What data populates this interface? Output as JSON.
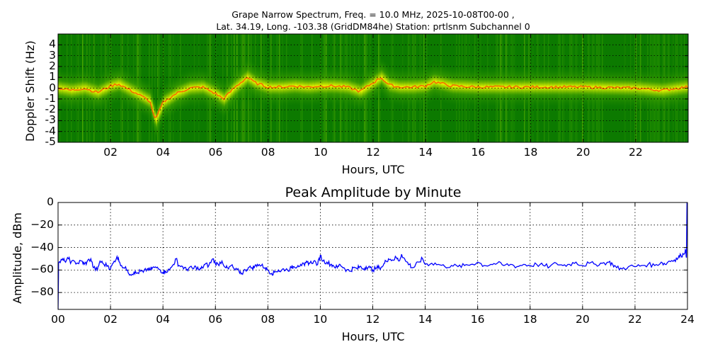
{
  "chart_data": [
    {
      "type": "heatmap",
      "title": "Grape Narrow Spectrum, Freq. = 10.0 MHz, 2025-10-08T00-00 ,\nLat.  34.19, Long. -103.38 (GridDM84he) Station: prtlsnm Subchannel 0",
      "title_line1": "Grape Narrow Spectrum, Freq. = 10.0 MHz, 2025-10-08T00-00 ,",
      "title_line2": "Lat.  34.19, Long. -103.38 (GridDM84he) Station: prtlsnm Subchannel 0",
      "xlabel": "Hours, UTC",
      "ylabel": "Doppler Shift (Hz)",
      "xlim": [
        0,
        24
      ],
      "ylim": [
        -5,
        5
      ],
      "xticks": [
        "02",
        "04",
        "06",
        "08",
        "10",
        "12",
        "14",
        "16",
        "18",
        "20",
        "22"
      ],
      "xtick_values": [
        2,
        4,
        6,
        8,
        10,
        12,
        14,
        16,
        18,
        20,
        22
      ],
      "yticks": [
        "4",
        "3",
        "2",
        "1",
        "0",
        "-1",
        "-2",
        "-3",
        "-4",
        "-5"
      ],
      "ytick_values": [
        4,
        3,
        2,
        1,
        0,
        -1,
        -2,
        -3,
        -4,
        -5
      ],
      "grid": true,
      "colormap": [
        "#006400",
        "#1e8c00",
        "#8cc800",
        "#e6f000",
        "#ffd200",
        "#ff3c00"
      ],
      "doppler_trace_hz": {
        "x": [
          0,
          0.5,
          1,
          1.5,
          2,
          2.3,
          2.6,
          3,
          3.5,
          3.7,
          4,
          4.5,
          5,
          5.5,
          6,
          6.3,
          6.7,
          7.2,
          7.5,
          8,
          8.5,
          9,
          9.5,
          10,
          10.5,
          11,
          11.5,
          12,
          12.3,
          12.6,
          13,
          13.5,
          14,
          14.3,
          15,
          16,
          17,
          18,
          19,
          20,
          21,
          22,
          23,
          23.9
        ],
        "y": [
          0,
          -0.2,
          0,
          -0.4,
          0.2,
          0.4,
          0,
          -0.5,
          -1.2,
          -3,
          -1.3,
          -0.5,
          0,
          0.1,
          -0.5,
          -1,
          0,
          1,
          0.5,
          0.1,
          0.1,
          0.2,
          0.1,
          0.2,
          0.2,
          0.1,
          -0.3,
          0.5,
          1,
          0.3,
          0.1,
          0.1,
          0.2,
          0.6,
          0.2,
          0.1,
          0.1,
          0.1,
          0.1,
          0.1,
          0.05,
          0,
          -0.2,
          0.1
        ]
      }
    },
    {
      "type": "line",
      "title": "Peak Amplitude by Minute",
      "xlabel": "Hours, UTC",
      "ylabel": "Amplitude, dBm",
      "xlim": [
        0,
        24
      ],
      "ylim": [
        -95,
        0
      ],
      "xticks": [
        "00",
        "02",
        "04",
        "06",
        "08",
        "10",
        "12",
        "14",
        "16",
        "18",
        "20",
        "22",
        "24"
      ],
      "xtick_values": [
        0,
        2,
        4,
        6,
        8,
        10,
        12,
        14,
        16,
        18,
        20,
        22,
        24
      ],
      "yticks": [
        "0",
        "−20",
        "−40",
        "−60",
        "−80"
      ],
      "ytick_values": [
        0,
        -20,
        -40,
        -60,
        -80
      ],
      "grid": true,
      "line_color": "#0000ff",
      "series": [
        {
          "name": "Peak Amplitude",
          "x": [
            0,
            0.02,
            0.15,
            0.25,
            0.4,
            0.5,
            0.65,
            0.75,
            0.9,
            1.0,
            1.1,
            1.25,
            1.35,
            1.5,
            1.6,
            1.75,
            1.9,
            2.0,
            2.1,
            2.25,
            2.35,
            2.5,
            2.65,
            2.75,
            2.9,
            3.0,
            3.15,
            3.25,
            3.4,
            3.5,
            3.6,
            3.75,
            3.9,
            4.0,
            4.1,
            4.25,
            4.4,
            4.5,
            4.6,
            4.75,
            4.9,
            5.0,
            5.15,
            5.25,
            5.4,
            5.5,
            5.6,
            5.75,
            5.9,
            6.0,
            6.1,
            6.25,
            6.4,
            6.5,
            6.6,
            6.75,
            6.9,
            7.0,
            7.15,
            7.25,
            7.4,
            7.5,
            7.6,
            7.75,
            7.9,
            8.0,
            8.15,
            8.25,
            8.4,
            8.5,
            8.6,
            8.75,
            8.9,
            9.0,
            9.15,
            9.25,
            9.4,
            9.5,
            9.6,
            9.75,
            9.9,
            10.0,
            10.1,
            10.25,
            10.4,
            10.5,
            10.65,
            10.75,
            10.9,
            11.0,
            11.15,
            11.25,
            11.4,
            11.5,
            11.65,
            11.75,
            11.9,
            12.0,
            12.15,
            12.25,
            12.4,
            12.5,
            12.6,
            12.75,
            12.9,
            13.0,
            13.1,
            13.25,
            13.4,
            13.5,
            13.6,
            13.75,
            13.9,
            14.0,
            14.25,
            14.5,
            14.75,
            15.0,
            15.25,
            15.5,
            15.75,
            16.0,
            16.25,
            16.5,
            16.75,
            17.0,
            17.25,
            17.5,
            17.75,
            18.0,
            18.25,
            18.5,
            18.75,
            19.0,
            19.25,
            19.5,
            19.75,
            20.0,
            20.25,
            20.5,
            20.75,
            21.0,
            21.15,
            21.3,
            21.5,
            21.75,
            22.0,
            22.25,
            22.5,
            22.75,
            23.0,
            23.15,
            23.3,
            23.5,
            23.65,
            23.75,
            23.85,
            23.92,
            23.96,
            23.98
          ],
          "y": [
            -95,
            -54,
            -51,
            -52,
            -50,
            -53,
            -53,
            -54,
            -52,
            -55,
            -53,
            -50,
            -58,
            -60,
            -52,
            -55,
            -56,
            -59,
            -54,
            -48,
            -53,
            -58,
            -60,
            -64,
            -62,
            -63,
            -61,
            -62,
            -59,
            -60,
            -58,
            -58,
            -60,
            -62,
            -61,
            -60,
            -55,
            -50,
            -56,
            -57,
            -60,
            -58,
            -59,
            -57,
            -60,
            -58,
            -55,
            -56,
            -50,
            -54,
            -55,
            -52,
            -58,
            -59,
            -56,
            -60,
            -61,
            -63,
            -60,
            -58,
            -58,
            -57,
            -55,
            -56,
            -58,
            -60,
            -63,
            -62,
            -60,
            -61,
            -59,
            -60,
            -58,
            -57,
            -56,
            -55,
            -56,
            -53,
            -54,
            -52,
            -55,
            -47,
            -52,
            -53,
            -55,
            -56,
            -58,
            -55,
            -58,
            -60,
            -61,
            -58,
            -59,
            -57,
            -59,
            -57,
            -58,
            -60,
            -58,
            -58,
            -56,
            -52,
            -50,
            -51,
            -49,
            -52,
            -46,
            -52,
            -55,
            -58,
            -57,
            -53,
            -50,
            -55,
            -54,
            -55,
            -57,
            -56,
            -57,
            -56,
            -55,
            -53,
            -56,
            -55,
            -54,
            -56,
            -55,
            -57,
            -55,
            -56,
            -55,
            -56,
            -57,
            -54,
            -56,
            -55,
            -53,
            -56,
            -54,
            -55,
            -54,
            -53,
            -55,
            -58,
            -59,
            -57,
            -57,
            -56,
            -55,
            -56,
            -53,
            -55,
            -52,
            -51,
            -49,
            -47,
            -46,
            -42,
            -49,
            0
          ]
        }
      ]
    }
  ]
}
